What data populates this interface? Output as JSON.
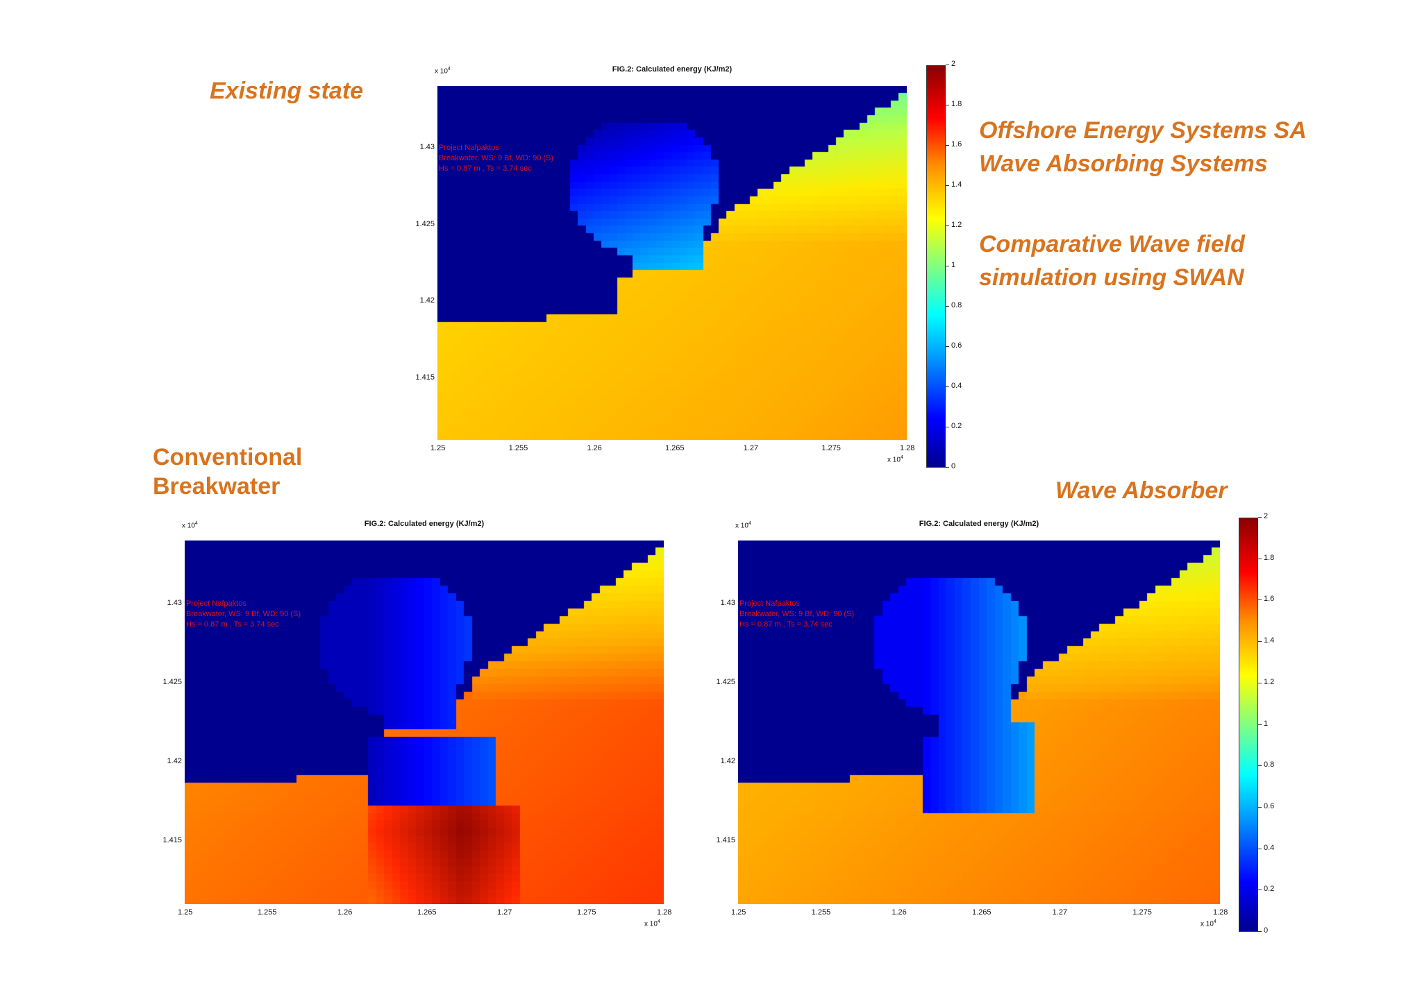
{
  "labels": {
    "existing": "Existing state",
    "company_line1": "Offshore Energy Systems SA",
    "company_line2": "Wave Absorbing Systems",
    "comparative_line1": "Comparative Wave field",
    "comparative_line2": "simulation using SWAN",
    "conventional_line1": "Conventional",
    "conventional_line2": "Breakwater",
    "absorber": "Wave Absorber"
  },
  "colors": {
    "label_orange": "#d9731e",
    "land_blue": "#00008f",
    "annotation_red": "#e01010"
  },
  "chart_data": [
    {
      "type": "heatmap",
      "id": "existing",
      "title": "FIG.2: Calculated energy (KJ/m2)",
      "x_ticks": [
        "1.25",
        "1.255",
        "1.26",
        "1.265",
        "1.27",
        "1.275",
        "1.28"
      ],
      "y_ticks": [
        "1.43",
        "1.425",
        "1.42",
        "1.415"
      ],
      "x_exponent": "x 10",
      "y_exponent": "x 10",
      "exponent_power": "4",
      "xlim": [
        1.25,
        1.28
      ],
      "ylim": [
        1.411,
        1.434
      ],
      "annotation": [
        "Project Nafpaktos",
        "Breakwater, WS: 9 Bf, WD: 90 (S)",
        "Hs = 0.87 m , Ts = 3.74 sec"
      ],
      "colorbar": {
        "min": 0,
        "max": 2,
        "ticks": [
          "2",
          "1.8",
          "1.6",
          "1.4",
          "1.2",
          "1",
          "0.8",
          "0.6",
          "0.4",
          "0.2",
          "0"
        ]
      },
      "scenario": "existing",
      "open_sea_energy": 1.25
    },
    {
      "type": "heatmap",
      "id": "conventional",
      "title": "FIG.2: Calculated energy (KJ/m2)",
      "x_ticks": [
        "1.25",
        "1.255",
        "1.26",
        "1.265",
        "1.27",
        "1.275",
        "1.28"
      ],
      "y_ticks": [
        "1.43",
        "1.425",
        "1.42",
        "1.415"
      ],
      "x_exponent": "x 10",
      "y_exponent": "x 10",
      "exponent_power": "4",
      "xlim": [
        1.25,
        1.28
      ],
      "ylim": [
        1.411,
        1.434
      ],
      "annotation": [
        "Project Nafpaktos",
        "Breakwater, WS: 9 Bf, WD: 90 (S)",
        "Hs = 0.87 m , Ts = 3.74 sec"
      ],
      "colorbar": null,
      "scenario": "conventional",
      "open_sea_energy": 1.4,
      "reflection_peak": 1.95
    },
    {
      "type": "heatmap",
      "id": "absorber",
      "title": "FIG.2: Calculated energy (KJ/m2)",
      "x_ticks": [
        "1.25",
        "1.255",
        "1.26",
        "1.265",
        "1.27",
        "1.275",
        "1.28"
      ],
      "y_ticks": [
        "1.43",
        "1.425",
        "1.42",
        "1.415"
      ],
      "x_exponent": "x 10",
      "y_exponent": "x 10",
      "exponent_power": "4",
      "xlim": [
        1.25,
        1.28
      ],
      "ylim": [
        1.411,
        1.434
      ],
      "annotation": [
        "Project Nafpaktos",
        "Breakwater, WS: 9 Bf, WD: 90 (S)",
        "Hs = 0.87 m , Ts = 3.74 sec"
      ],
      "colorbar": {
        "min": 0,
        "max": 2,
        "ticks": [
          "2",
          "1.8",
          "1.6",
          "1.4",
          "1.2",
          "1",
          "0.8",
          "0.6",
          "0.4",
          "0.2",
          "0"
        ]
      },
      "scenario": "absorber",
      "open_sea_energy": 1.35
    }
  ]
}
